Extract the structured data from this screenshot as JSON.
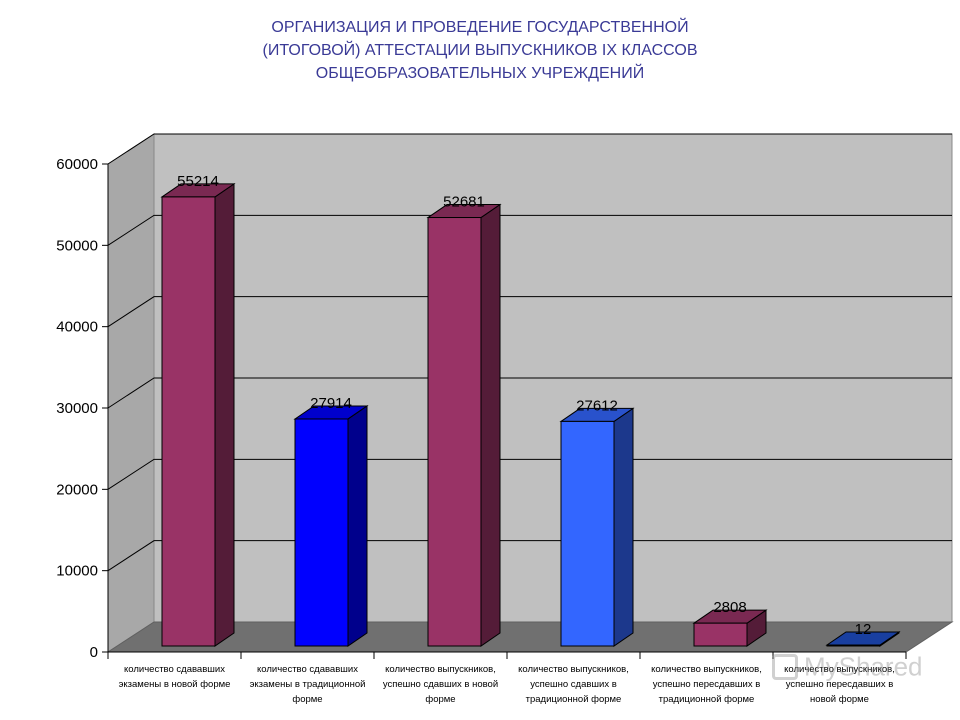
{
  "title_lines": [
    "ОРГАНИЗАЦИЯ И ПРОВЕДЕНИЕ ГОСУДАРСТВЕННОЙ",
    "(ИТОГОВОЙ) АТТЕСТАЦИИ ВЫПУСКНИКОВ IX КЛАССОВ",
    "ОБЩЕОБРАЗОВАТЕЛЬНЫХ УЧРЕЖДЕНИЙ"
  ],
  "watermark": "MyShared",
  "chart_data": {
    "type": "bar",
    "three_d": true,
    "ylim": [
      0,
      60000
    ],
    "yticks": [
      0,
      10000,
      20000,
      30000,
      40000,
      50000,
      60000
    ],
    "grid": true,
    "legend": "none",
    "categories": [
      [
        "количество сдававших",
        "экзамены в новой форме"
      ],
      [
        "количество сдававших",
        "экзамены в традиционной",
        "форме"
      ],
      [
        "количество выпускников,",
        "успешно сдавших в новой",
        "форме"
      ],
      [
        "количество выпускников,",
        "успешно сдавших в",
        "традиционной форме"
      ],
      [
        "количество выпускников,",
        "успешно пересдавших в",
        "традиционной форме"
      ],
      [
        "количество выпускников,",
        "успешно пересдавших в",
        "новой форме"
      ]
    ],
    "values": [
      55214,
      27914,
      52681,
      27612,
      2808,
      12
    ],
    "data_labels": [
      "55214",
      "27914",
      "52681",
      "27612",
      "2808",
      "12"
    ],
    "colors": [
      "#993366",
      "#0000ff",
      "#993366",
      "#3366ff",
      "#993366",
      "#1f4fc8"
    ]
  }
}
